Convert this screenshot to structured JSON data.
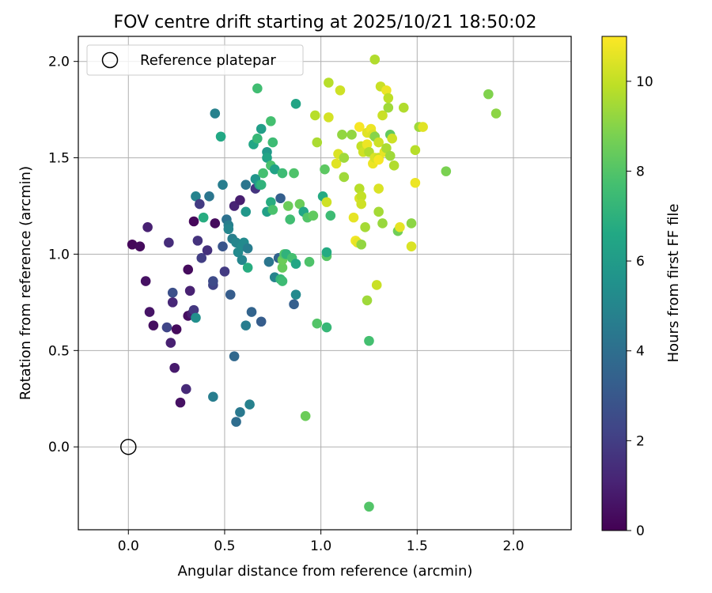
{
  "chart_data": {
    "type": "scatter",
    "title": "FOV centre drift starting at 2025/10/21 18:50:02",
    "xlabel": "Angular distance from reference (arcmin)",
    "ylabel": "Rotation from reference (arcmin)",
    "xlim": [
      -0.26,
      2.3
    ],
    "ylim": [
      -0.43,
      2.13
    ],
    "xticks": [
      0.0,
      0.5,
      1.0,
      1.5,
      2.0
    ],
    "yticks": [
      0.0,
      0.5,
      1.0,
      1.5,
      2.0
    ],
    "xtick_labels": [
      "0.0",
      "0.5",
      "1.0",
      "1.5",
      "2.0"
    ],
    "ytick_labels": [
      "0.0",
      "0.5",
      "1.0",
      "1.5",
      "2.0"
    ],
    "grid": true,
    "legend": {
      "position": "top-left",
      "entries": [
        {
          "label": "Reference platepar",
          "marker": "open-circle",
          "color": "#000000"
        }
      ]
    },
    "colorbar": {
      "label": "Hours from first FF file",
      "colormap": "viridis",
      "range": [
        0,
        11
      ],
      "ticks": [
        0,
        2,
        4,
        6,
        8,
        10
      ],
      "tick_labels": [
        "0",
        "2",
        "4",
        "6",
        "8",
        "10"
      ]
    },
    "reference_point": {
      "x": 0.0,
      "y": 0.0
    },
    "series": [
      {
        "color_by": "hours",
        "points": [
          {
            "x": 0.02,
            "y": 1.05,
            "c": 0.2
          },
          {
            "x": 0.06,
            "y": 1.04,
            "c": 0.3
          },
          {
            "x": 0.09,
            "y": 0.86,
            "c": 0.5
          },
          {
            "x": 0.1,
            "y": 1.14,
            "c": 1.0
          },
          {
            "x": 0.11,
            "y": 0.7,
            "c": 0.6
          },
          {
            "x": 0.13,
            "y": 0.63,
            "c": 0.4
          },
          {
            "x": 0.2,
            "y": 0.62,
            "c": 2.3
          },
          {
            "x": 0.21,
            "y": 1.06,
            "c": 1.4
          },
          {
            "x": 0.22,
            "y": 0.54,
            "c": 1.0
          },
          {
            "x": 0.23,
            "y": 0.8,
            "c": 2.7
          },
          {
            "x": 0.23,
            "y": 0.75,
            "c": 1.2
          },
          {
            "x": 0.24,
            "y": 0.41,
            "c": 0.8
          },
          {
            "x": 0.25,
            "y": 0.61,
            "c": 0.3
          },
          {
            "x": 0.27,
            "y": 0.23,
            "c": 0.5
          },
          {
            "x": 0.3,
            "y": 0.3,
            "c": 1.3
          },
          {
            "x": 0.31,
            "y": 0.92,
            "c": 0.3
          },
          {
            "x": 0.31,
            "y": 0.68,
            "c": 0.4
          },
          {
            "x": 0.32,
            "y": 0.81,
            "c": 1.0
          },
          {
            "x": 0.33,
            "y": 0.69,
            "c": 0.9
          },
          {
            "x": 0.34,
            "y": 0.71,
            "c": 1.8
          },
          {
            "x": 0.34,
            "y": 1.17,
            "c": 0.2
          },
          {
            "x": 0.35,
            "y": 1.3,
            "c": 4.9
          },
          {
            "x": 0.35,
            "y": 0.67,
            "c": 5.4
          },
          {
            "x": 0.36,
            "y": 1.07,
            "c": 1.6
          },
          {
            "x": 0.37,
            "y": 1.26,
            "c": 1.9
          },
          {
            "x": 0.38,
            "y": 0.98,
            "c": 2.0
          },
          {
            "x": 0.39,
            "y": 1.19,
            "c": 6.8
          },
          {
            "x": 0.41,
            "y": 1.02,
            "c": 1.5
          },
          {
            "x": 0.42,
            "y": 1.3,
            "c": 4.3
          },
          {
            "x": 0.44,
            "y": 0.26,
            "c": 4.6
          },
          {
            "x": 0.44,
            "y": 0.84,
            "c": 2.2
          },
          {
            "x": 0.44,
            "y": 0.86,
            "c": 2.5
          },
          {
            "x": 0.45,
            "y": 1.16,
            "c": 0.3
          },
          {
            "x": 0.45,
            "y": 1.73,
            "c": 4.8
          },
          {
            "x": 0.48,
            "y": 1.61,
            "c": 6.6
          },
          {
            "x": 0.49,
            "y": 1.04,
            "c": 2.9
          },
          {
            "x": 0.49,
            "y": 1.36,
            "c": 4.6
          },
          {
            "x": 0.5,
            "y": 0.91,
            "c": 1.9
          },
          {
            "x": 0.51,
            "y": 1.18,
            "c": 4.1
          },
          {
            "x": 0.52,
            "y": 1.15,
            "c": 4.7
          },
          {
            "x": 0.52,
            "y": 1.13,
            "c": 5.0
          },
          {
            "x": 0.53,
            "y": 0.79,
            "c": 3.2
          },
          {
            "x": 0.54,
            "y": 1.08,
            "c": 4.7
          },
          {
            "x": 0.55,
            "y": 0.47,
            "c": 3.7
          },
          {
            "x": 0.55,
            "y": 1.25,
            "c": 1.1
          },
          {
            "x": 0.56,
            "y": 0.13,
            "c": 3.9
          },
          {
            "x": 0.56,
            "y": 1.06,
            "c": 5.0
          },
          {
            "x": 0.57,
            "y": 1.01,
            "c": 5.2
          },
          {
            "x": 0.58,
            "y": 1.28,
            "c": 0.9
          },
          {
            "x": 0.58,
            "y": 0.18,
            "c": 4.4
          },
          {
            "x": 0.59,
            "y": 1.04,
            "c": 5.3
          },
          {
            "x": 0.59,
            "y": 0.97,
            "c": 5.0
          },
          {
            "x": 0.6,
            "y": 1.06,
            "c": 5.2
          },
          {
            "x": 0.61,
            "y": 1.36,
            "c": 4.3
          },
          {
            "x": 0.61,
            "y": 1.22,
            "c": 5.8
          },
          {
            "x": 0.61,
            "y": 0.63,
            "c": 4.6
          },
          {
            "x": 0.62,
            "y": 0.93,
            "c": 6.8
          },
          {
            "x": 0.62,
            "y": 1.03,
            "c": 4.6
          },
          {
            "x": 0.63,
            "y": 0.22,
            "c": 4.8
          },
          {
            "x": 0.64,
            "y": 0.7,
            "c": 3.5
          },
          {
            "x": 0.65,
            "y": 1.57,
            "c": 6.5
          },
          {
            "x": 0.66,
            "y": 1.34,
            "c": 1.7
          },
          {
            "x": 0.66,
            "y": 1.39,
            "c": 5.7
          },
          {
            "x": 0.67,
            "y": 1.6,
            "c": 7.3
          },
          {
            "x": 0.67,
            "y": 1.86,
            "c": 7.6
          },
          {
            "x": 0.68,
            "y": 1.36,
            "c": 6.3
          },
          {
            "x": 0.69,
            "y": 1.36,
            "c": 7.1
          },
          {
            "x": 0.69,
            "y": 1.65,
            "c": 6.1
          },
          {
            "x": 0.69,
            "y": 0.65,
            "c": 3.2
          },
          {
            "x": 0.7,
            "y": 1.42,
            "c": 7.7
          },
          {
            "x": 0.72,
            "y": 1.53,
            "c": 5.9
          },
          {
            "x": 0.72,
            "y": 1.5,
            "c": 6.4
          },
          {
            "x": 0.72,
            "y": 1.22,
            "c": 6.2
          },
          {
            "x": 0.73,
            "y": 0.96,
            "c": 4.3
          },
          {
            "x": 0.74,
            "y": 1.69,
            "c": 7.7
          },
          {
            "x": 0.74,
            "y": 1.46,
            "c": 7.8
          },
          {
            "x": 0.74,
            "y": 1.27,
            "c": 6.8
          },
          {
            "x": 0.75,
            "y": 1.23,
            "c": 7.8
          },
          {
            "x": 0.75,
            "y": 1.58,
            "c": 7.5
          },
          {
            "x": 0.76,
            "y": 1.44,
            "c": 6.3
          },
          {
            "x": 0.76,
            "y": 0.88,
            "c": 4.9
          },
          {
            "x": 0.78,
            "y": 0.98,
            "c": 3.5
          },
          {
            "x": 0.79,
            "y": 1.29,
            "c": 3.3
          },
          {
            "x": 0.79,
            "y": 0.87,
            "c": 7.2
          },
          {
            "x": 0.8,
            "y": 0.86,
            "c": 7.5
          },
          {
            "x": 0.8,
            "y": 1.42,
            "c": 7.5
          },
          {
            "x": 0.8,
            "y": 0.93,
            "c": 8.4
          },
          {
            "x": 0.8,
            "y": 0.97,
            "c": 8.5
          },
          {
            "x": 0.81,
            "y": 1.0,
            "c": 8.0
          },
          {
            "x": 0.82,
            "y": 1.0,
            "c": 7.1
          },
          {
            "x": 0.83,
            "y": 1.25,
            "c": 8.5
          },
          {
            "x": 0.84,
            "y": 1.18,
            "c": 7.6
          },
          {
            "x": 0.85,
            "y": 0.98,
            "c": 7.7
          },
          {
            "x": 0.86,
            "y": 0.74,
            "c": 3.3
          },
          {
            "x": 0.86,
            "y": 1.42,
            "c": 7.9
          },
          {
            "x": 0.87,
            "y": 0.95,
            "c": 6.5
          },
          {
            "x": 0.87,
            "y": 1.78,
            "c": 6.4
          },
          {
            "x": 0.87,
            "y": 0.79,
            "c": 5.2
          },
          {
            "x": 0.89,
            "y": 1.26,
            "c": 8.5
          },
          {
            "x": 0.91,
            "y": 1.22,
            "c": 6.5
          },
          {
            "x": 0.92,
            "y": 0.16,
            "c": 8.5
          },
          {
            "x": 0.93,
            "y": 1.19,
            "c": 8.0
          },
          {
            "x": 0.94,
            "y": 0.96,
            "c": 7.9
          },
          {
            "x": 0.96,
            "y": 1.2,
            "c": 8.3
          },
          {
            "x": 0.97,
            "y": 1.72,
            "c": 9.8
          },
          {
            "x": 0.98,
            "y": 1.58,
            "c": 9.6
          },
          {
            "x": 0.98,
            "y": 0.64,
            "c": 8.0
          },
          {
            "x": 1.01,
            "y": 1.3,
            "c": 6.7
          },
          {
            "x": 1.02,
            "y": 1.44,
            "c": 8.2
          },
          {
            "x": 1.03,
            "y": 0.99,
            "c": 8.1
          },
          {
            "x": 1.03,
            "y": 0.62,
            "c": 7.3
          },
          {
            "x": 1.03,
            "y": 1.01,
            "c": 6.7
          },
          {
            "x": 1.03,
            "y": 1.27,
            "c": 10.2
          },
          {
            "x": 1.04,
            "y": 1.89,
            "c": 9.8
          },
          {
            "x": 1.04,
            "y": 1.71,
            "c": 10.3
          },
          {
            "x": 1.05,
            "y": 1.2,
            "c": 7.5
          },
          {
            "x": 1.08,
            "y": 1.47,
            "c": 10.5
          },
          {
            "x": 1.09,
            "y": 1.52,
            "c": 10.4
          },
          {
            "x": 1.1,
            "y": 1.85,
            "c": 10.2
          },
          {
            "x": 1.11,
            "y": 1.62,
            "c": 9.2
          },
          {
            "x": 1.12,
            "y": 1.4,
            "c": 9.4
          },
          {
            "x": 1.12,
            "y": 1.5,
            "c": 9.4
          },
          {
            "x": 1.16,
            "y": 1.62,
            "c": 9.2
          },
          {
            "x": 1.17,
            "y": 1.19,
            "c": 10.6
          },
          {
            "x": 1.18,
            "y": 1.07,
            "c": 10.8
          },
          {
            "x": 1.19,
            "y": 1.06,
            "c": 10.6
          },
          {
            "x": 1.2,
            "y": 1.66,
            "c": 10.9
          },
          {
            "x": 1.2,
            "y": 1.29,
            "c": 10.4
          },
          {
            "x": 1.2,
            "y": 1.34,
            "c": 9.8
          },
          {
            "x": 1.21,
            "y": 1.56,
            "c": 10.0
          },
          {
            "x": 1.21,
            "y": 1.3,
            "c": 10.0
          },
          {
            "x": 1.21,
            "y": 1.26,
            "c": 10.2
          },
          {
            "x": 1.21,
            "y": 1.05,
            "c": 9.2
          },
          {
            "x": 1.22,
            "y": 1.53,
            "c": 10.2
          },
          {
            "x": 1.23,
            "y": 1.14,
            "c": 9.5
          },
          {
            "x": 1.24,
            "y": 1.57,
            "c": 10.7
          },
          {
            "x": 1.24,
            "y": 0.76,
            "c": 9.4
          },
          {
            "x": 1.24,
            "y": 1.63,
            "c": 10.5
          },
          {
            "x": 1.25,
            "y": 0.55,
            "c": 7.7
          },
          {
            "x": 1.25,
            "y": 1.53,
            "c": 9.7
          },
          {
            "x": 1.25,
            "y": -0.31,
            "c": 8.0
          },
          {
            "x": 1.26,
            "y": 1.65,
            "c": 10.7
          },
          {
            "x": 1.27,
            "y": 1.62,
            "c": 10.4
          },
          {
            "x": 1.27,
            "y": 1.47,
            "c": 10.7
          },
          {
            "x": 1.28,
            "y": 1.5,
            "c": 10.4
          },
          {
            "x": 1.28,
            "y": 1.61,
            "c": 9.0
          },
          {
            "x": 1.28,
            "y": 2.01,
            "c": 9.7
          },
          {
            "x": 1.29,
            "y": 0.84,
            "c": 10.1
          },
          {
            "x": 1.3,
            "y": 1.58,
            "c": 10.2
          },
          {
            "x": 1.3,
            "y": 1.5,
            "c": 10.1
          },
          {
            "x": 1.3,
            "y": 1.34,
            "c": 10.4
          },
          {
            "x": 1.3,
            "y": 1.22,
            "c": 9.5
          },
          {
            "x": 1.3,
            "y": 1.49,
            "c": 10.9
          },
          {
            "x": 1.31,
            "y": 1.87,
            "c": 10.1
          },
          {
            "x": 1.32,
            "y": 1.72,
            "c": 10.1
          },
          {
            "x": 1.32,
            "y": 1.16,
            "c": 9.3
          },
          {
            "x": 1.33,
            "y": 1.53,
            "c": 10.6
          },
          {
            "x": 1.34,
            "y": 1.85,
            "c": 10.7
          },
          {
            "x": 1.34,
            "y": 1.55,
            "c": 9.6
          },
          {
            "x": 1.35,
            "y": 1.81,
            "c": 9.9
          },
          {
            "x": 1.35,
            "y": 1.76,
            "c": 9.4
          },
          {
            "x": 1.36,
            "y": 1.62,
            "c": 8.3
          },
          {
            "x": 1.36,
            "y": 1.51,
            "c": 9.4
          },
          {
            "x": 1.37,
            "y": 1.6,
            "c": 10.2
          },
          {
            "x": 1.38,
            "y": 1.46,
            "c": 9.7
          },
          {
            "x": 1.4,
            "y": 1.12,
            "c": 8.6
          },
          {
            "x": 1.41,
            "y": 1.14,
            "c": 10.6
          },
          {
            "x": 1.43,
            "y": 1.76,
            "c": 9.7
          },
          {
            "x": 1.47,
            "y": 1.04,
            "c": 10.4
          },
          {
            "x": 1.47,
            "y": 1.16,
            "c": 9.1
          },
          {
            "x": 1.49,
            "y": 1.37,
            "c": 10.7
          },
          {
            "x": 1.49,
            "y": 1.54,
            "c": 9.8
          },
          {
            "x": 1.51,
            "y": 1.66,
            "c": 9.4
          },
          {
            "x": 1.53,
            "y": 1.66,
            "c": 10.5
          },
          {
            "x": 1.65,
            "y": 1.43,
            "c": 8.8
          },
          {
            "x": 1.87,
            "y": 1.83,
            "c": 8.9
          },
          {
            "x": 1.91,
            "y": 1.73,
            "c": 9.1
          }
        ]
      }
    ]
  }
}
